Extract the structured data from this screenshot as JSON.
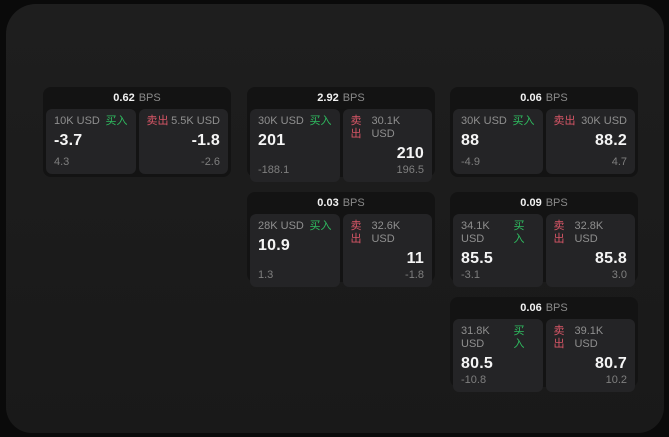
{
  "labels": {
    "bps_unit": "BPS",
    "buy": "买入",
    "sell": "卖出"
  },
  "colors": {
    "page_bg": "#0a0a0a",
    "window_bg": "#1b1b1b",
    "card_bg": "#131313",
    "panel_bg": "#242426",
    "buy_green": "#2fbd60",
    "sell_red": "#d85667",
    "text_primary": "#f5f5f5",
    "text_muted": "#8a8a8a"
  },
  "cards": [
    {
      "bps": "0.62",
      "buy": {
        "amount": "10K USD",
        "price": "-3.7",
        "delta": "4.3"
      },
      "sell": {
        "amount": "5.5K USD",
        "price": "-1.8",
        "delta": "-2.6"
      }
    },
    {
      "bps": "2.92",
      "buy": {
        "amount": "30K USD",
        "price": "201",
        "delta": "-188.1"
      },
      "sell": {
        "amount": "30.1K USD",
        "price": "210",
        "delta": "196.5"
      }
    },
    {
      "bps": "0.06",
      "buy": {
        "amount": "30K USD",
        "price": "88",
        "delta": "-4.9"
      },
      "sell": {
        "amount": "30K USD",
        "price": "88.2",
        "delta": "4.7"
      }
    },
    {
      "bps": "0.03",
      "buy": {
        "amount": "28K USD",
        "price": "10.9",
        "delta": "1.3"
      },
      "sell": {
        "amount": "32.6K USD",
        "price": "11",
        "delta": "-1.8"
      }
    },
    {
      "bps": "0.09",
      "buy": {
        "amount": "34.1K USD",
        "price": "85.5",
        "delta": "-3.1"
      },
      "sell": {
        "amount": "32.8K USD",
        "price": "85.8",
        "delta": "3.0"
      }
    },
    {
      "bps": "0.06",
      "buy": {
        "amount": "31.8K USD",
        "price": "80.5",
        "delta": "-10.8"
      },
      "sell": {
        "amount": "39.1K USD",
        "price": "80.7",
        "delta": "10.2"
      }
    }
  ]
}
